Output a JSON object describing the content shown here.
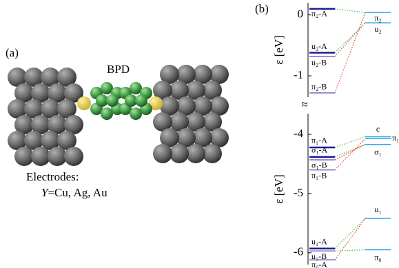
{
  "panel_a": {
    "label": "(a)",
    "molecule": "BPD",
    "electrodes_title": "Electrodes:",
    "electrodes_var": "Y",
    "electrodes_list": "=Cu, Ag, Au"
  },
  "panel_b": {
    "label": "(b)",
    "upper": {
      "y_label": "ε [eV]",
      "ylim": [
        0.2,
        -1.35
      ],
      "yticks": [
        0,
        -1
      ],
      "levels": [
        {
          "label": "π₂-A",
          "value": 0.1,
          "side": "left",
          "color": "#1c1c99"
        },
        {
          "label": "u₂-A",
          "value": -0.62,
          "side": "left",
          "color": "#1c1c99"
        },
        {
          "label": "u₂-B",
          "value": -0.68,
          "side": "left",
          "color": "#7b68c8"
        },
        {
          "label": "π₂-B",
          "value": -1.28,
          "side": "left",
          "color": "#7b68c8"
        },
        {
          "label": "π₂",
          "value": 0.04,
          "side": "right",
          "color": "#2aa6e0"
        },
        {
          "label": "u₂",
          "value": -0.13,
          "side": "right",
          "color": "#2aa6e0"
        }
      ]
    },
    "lower": {
      "y_label": "ε [eV]",
      "ylim": [
        -3.65,
        -6.2
      ],
      "yticks": [
        -4,
        -5,
        -6
      ],
      "levels": [
        {
          "label": "π₁-A",
          "value": -4.22,
          "side": "left",
          "color": "#1c1c99"
        },
        {
          "label": "σ₁-A",
          "value": -4.38,
          "side": "left",
          "color": "#1c1c99"
        },
        {
          "label": "σ₁-B",
          "value": -4.43,
          "side": "left",
          "color": "#7b68c8"
        },
        {
          "label": "π₁-B",
          "value": -4.6,
          "side": "left",
          "color": "#7b68c8"
        },
        {
          "label": "u₁-A",
          "value": -5.93,
          "side": "left",
          "color": "#1c1c99"
        },
        {
          "label": "u₁-B",
          "value": -5.97,
          "side": "left",
          "color": "#7b68c8"
        },
        {
          "label": "π₀-A",
          "value": -6.12,
          "side": "left",
          "color": "#7b68c8"
        },
        {
          "label": "c",
          "value": -4.04,
          "side": "right",
          "color": "#2aa6e0"
        },
        {
          "label": "π₁",
          "value": -4.07,
          "side": "right",
          "color": "#2aa6e0"
        },
        {
          "label": "σ₁",
          "value": -4.17,
          "side": "right",
          "color": "#2aa6e0"
        },
        {
          "label": "u₁",
          "value": -5.42,
          "side": "right",
          "color": "#2aa6e0"
        },
        {
          "label": "π₀",
          "value": -5.95,
          "side": "right",
          "color": "#2aa6e0"
        }
      ]
    }
  }
}
